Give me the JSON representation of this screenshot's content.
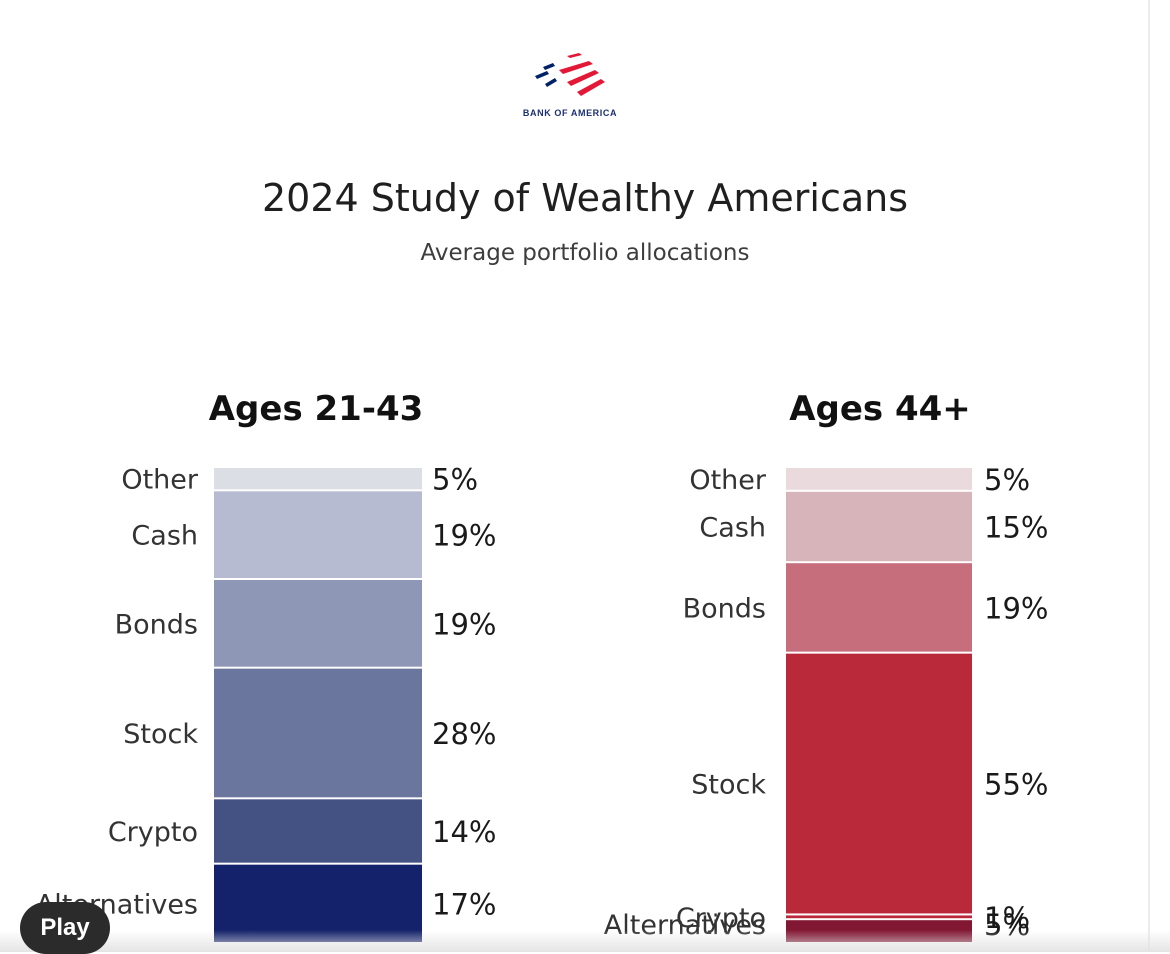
{
  "logo": {
    "text": "BANK OF AMERICA",
    "colors": {
      "red": "#e31837",
      "blue": "#012169"
    }
  },
  "player": {
    "play_label": "Play"
  },
  "chart_data": {
    "type": "bar",
    "subtype": "stacked-100",
    "title": "2024 Study of Wealthy Americans",
    "subtitle": "Average portfolio allocations",
    "categories": [
      "Ages 21-43",
      "Ages 44+"
    ],
    "series": [
      {
        "name": "Other",
        "values": [
          5,
          5
        ]
      },
      {
        "name": "Cash",
        "values": [
          19,
          15
        ]
      },
      {
        "name": "Bonds",
        "values": [
          19,
          19
        ]
      },
      {
        "name": "Stock",
        "values": [
          28,
          55
        ]
      },
      {
        "name": "Crypto",
        "values": [
          14,
          1
        ]
      },
      {
        "name": "Alternatives",
        "values": [
          17,
          5
        ]
      }
    ],
    "value_labels": [
      [
        "5%",
        "19%",
        "19%",
        "28%",
        "14%",
        "17%"
      ],
      [
        "5%",
        "15%",
        "19%",
        "55%",
        "1%",
        "5%"
      ]
    ],
    "colors": [
      [
        "#dcdee6",
        "#b6bbd1",
        "#8e97b6",
        "#6a769d",
        "#445183",
        "#13226a"
      ],
      [
        "#eadadd",
        "#d7b3ba",
        "#c66e7c",
        "#b9293a",
        "#b9293a",
        "#821734"
      ]
    ],
    "legend": "none",
    "grid": false
  }
}
